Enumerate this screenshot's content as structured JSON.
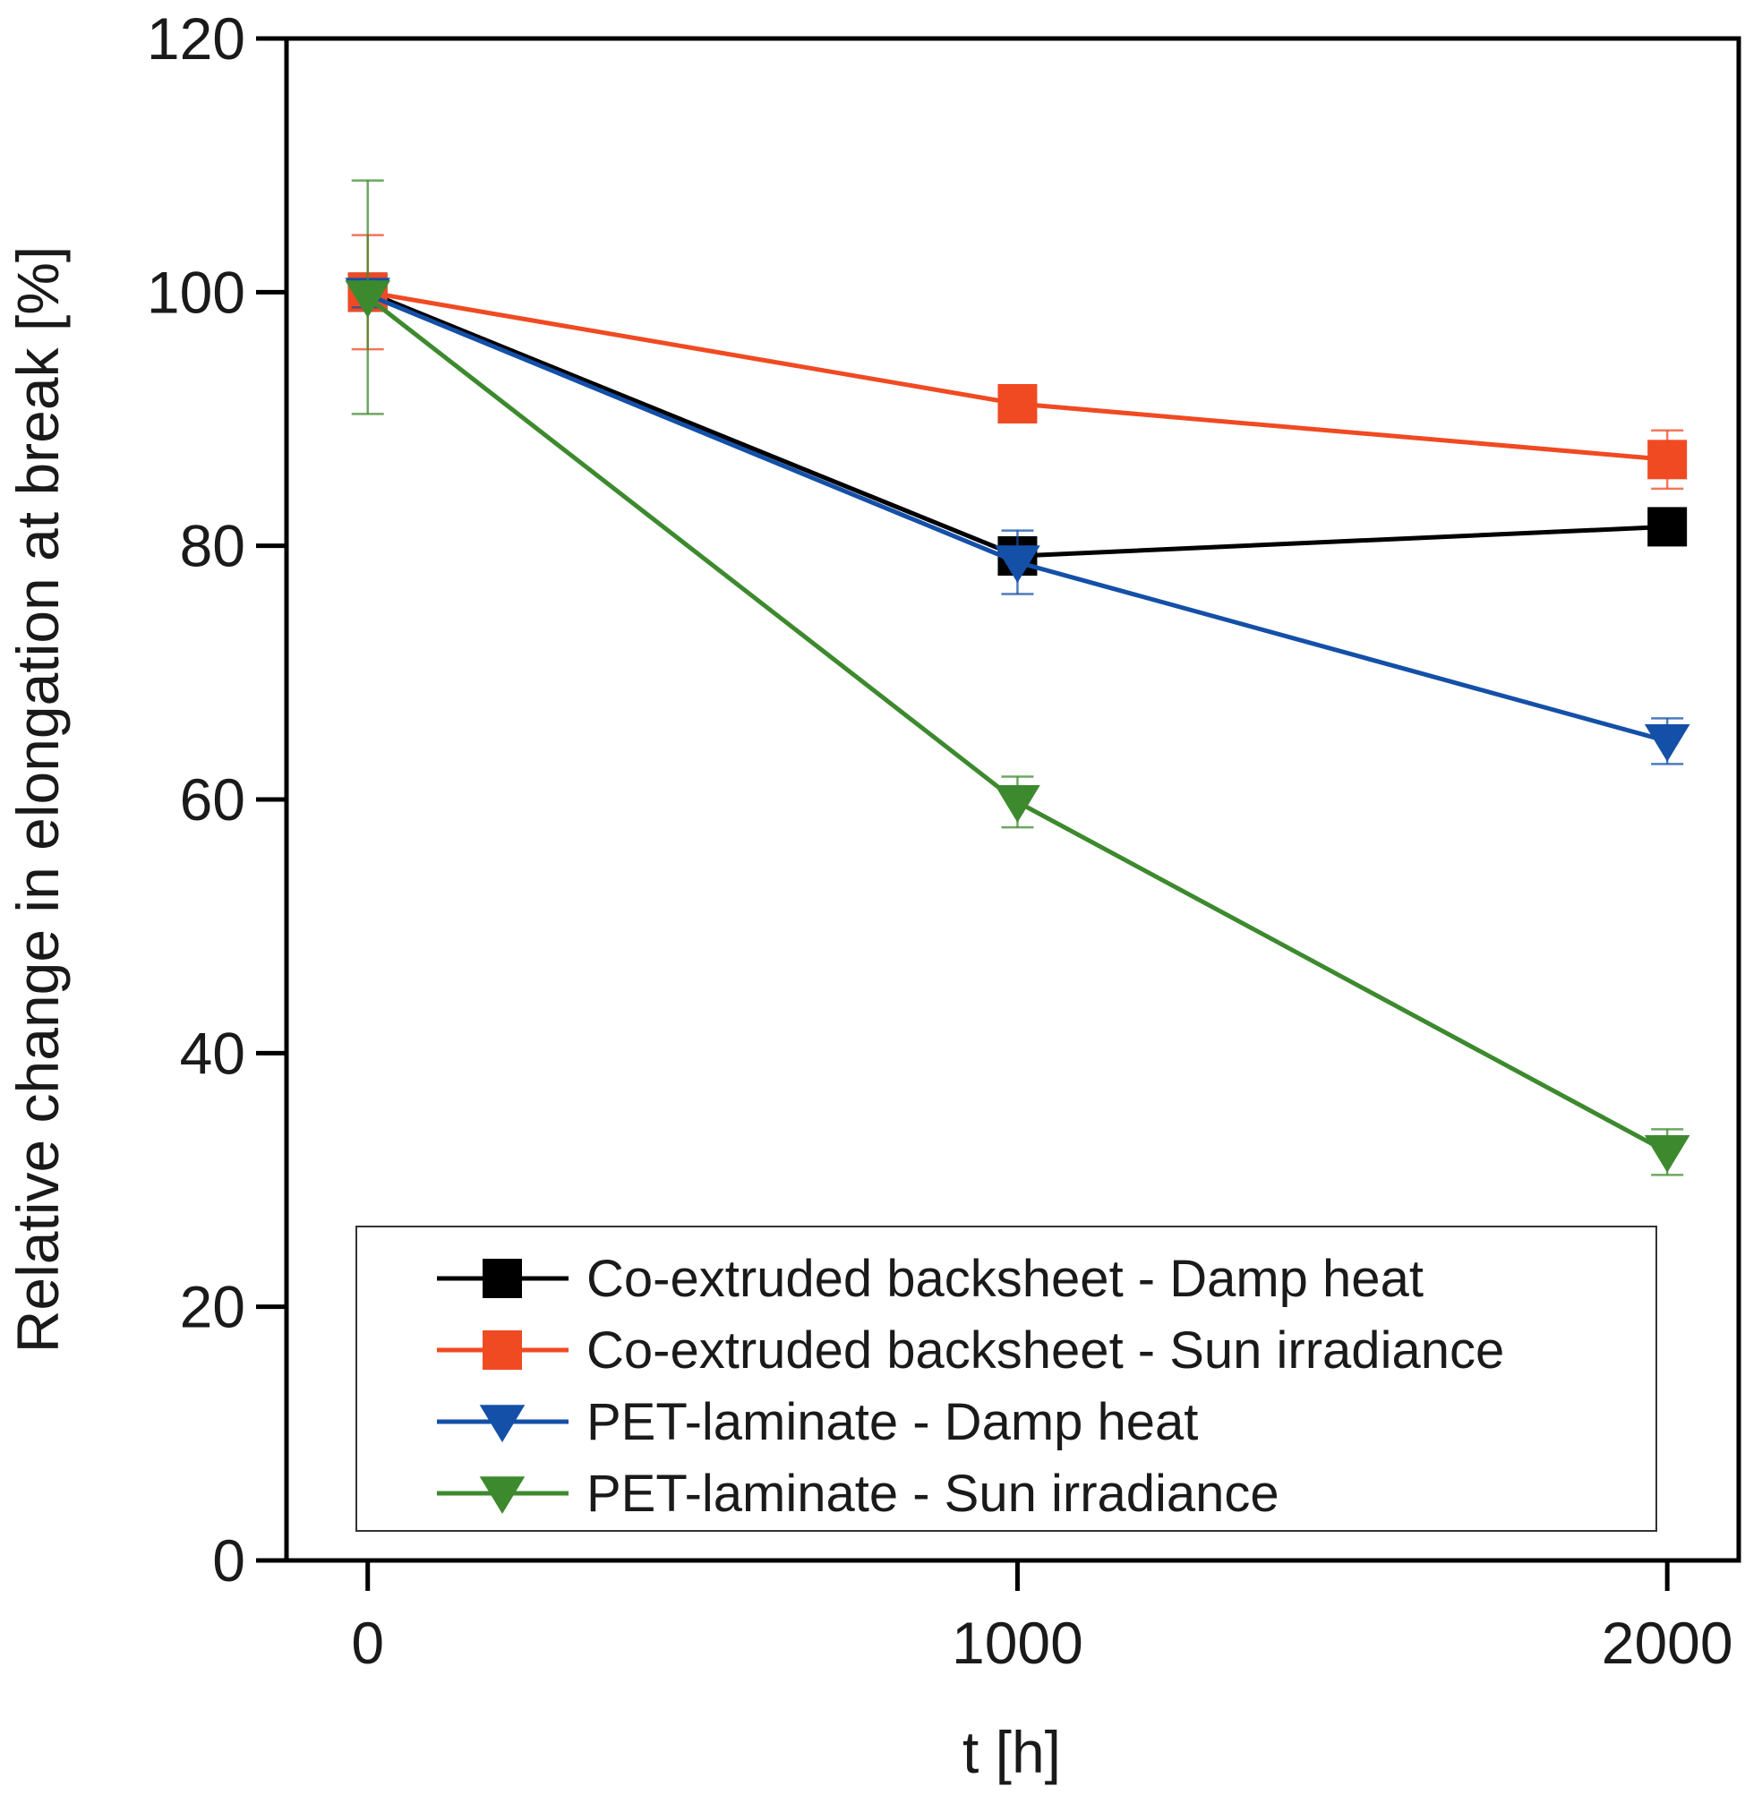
{
  "chart_data": {
    "type": "line",
    "xlabel": "t [h]",
    "ylabel": "Relative change in elongation at break [%]",
    "xlim": [
      -125,
      2110
    ],
    "ylim": [
      0,
      120
    ],
    "xticks": [
      0,
      1000,
      2000
    ],
    "yticks": [
      0,
      20,
      40,
      60,
      80,
      100,
      120
    ],
    "xtick_labels": [
      "0",
      "1000",
      "2000"
    ],
    "ytick_labels": [
      "0",
      "20",
      "40",
      "60",
      "80",
      "100",
      "120"
    ],
    "grid": false,
    "legend_position": "bottom-center",
    "series": [
      {
        "name": "Co-extruded backsheet - Damp heat",
        "color": "#000000",
        "marker": "square",
        "x": [
          0,
          1000,
          2000
        ],
        "y": [
          100,
          79.2,
          81.5
        ],
        "err": [
          1.0,
          1.2,
          0.8
        ]
      },
      {
        "name": "Co-extruded backsheet - Sun irradiance",
        "color": "#f04a23",
        "marker": "square",
        "x": [
          0,
          1000,
          2000
        ],
        "y": [
          100,
          91.2,
          86.8
        ],
        "err": [
          4.5,
          1.2,
          2.3
        ]
      },
      {
        "name": "PET-laminate - Damp heat",
        "color": "#1450a8",
        "marker": "triangle-down",
        "x": [
          0,
          1000,
          2000
        ],
        "y": [
          99.8,
          78.7,
          64.6
        ],
        "err": [
          1.0,
          2.5,
          1.8
        ]
      },
      {
        "name": "PET-laminate - Sun irradiance",
        "color": "#3d8a2e",
        "marker": "triangle-down",
        "x": [
          0,
          1000,
          2000
        ],
        "y": [
          99.6,
          59.8,
          32.2
        ],
        "err": [
          9.2,
          2.0,
          1.8
        ]
      }
    ]
  }
}
